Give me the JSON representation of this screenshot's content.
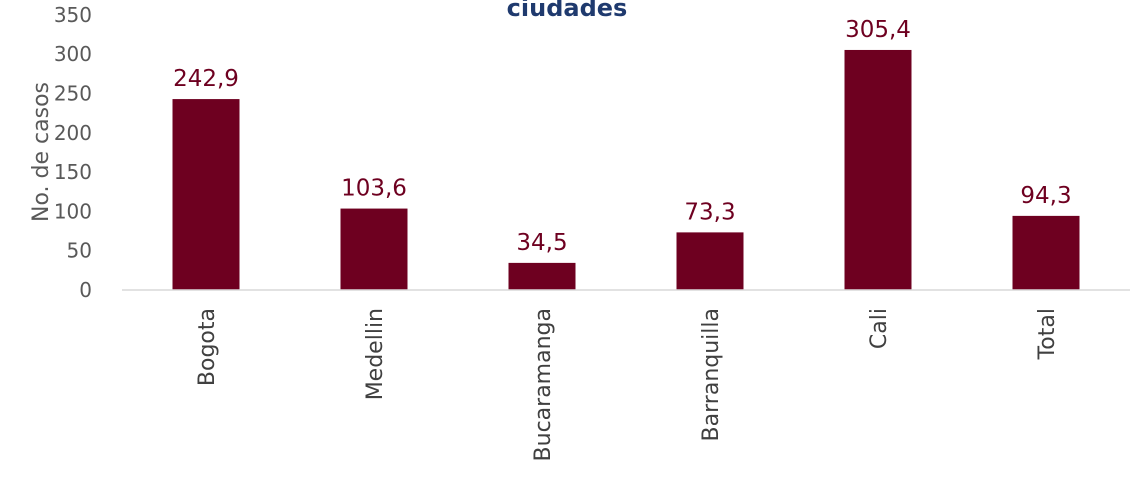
{
  "chart_data": {
    "type": "bar",
    "title": "ciudades",
    "ylabel": "No. de casos",
    "xlabel": "",
    "categories": [
      "Bogota",
      "Medellin",
      "Bucaramanga",
      "Barranquilla",
      "Cali",
      "Total"
    ],
    "values": [
      242.9,
      103.6,
      34.5,
      73.3,
      305.4,
      94.3
    ],
    "value_labels": [
      "242,9",
      "103,6",
      "34,5",
      "73,3",
      "305,4",
      "94,3"
    ],
    "ylim": [
      0,
      350
    ],
    "yticks": [
      0,
      50,
      100,
      150,
      200,
      250,
      300,
      350
    ],
    "grid": false,
    "legend": "none"
  },
  "colors": {
    "bar": "#6e0020",
    "data_label": "#6e0020",
    "title": "#1f3a6e",
    "axis_line": "#d9d9d9"
  }
}
